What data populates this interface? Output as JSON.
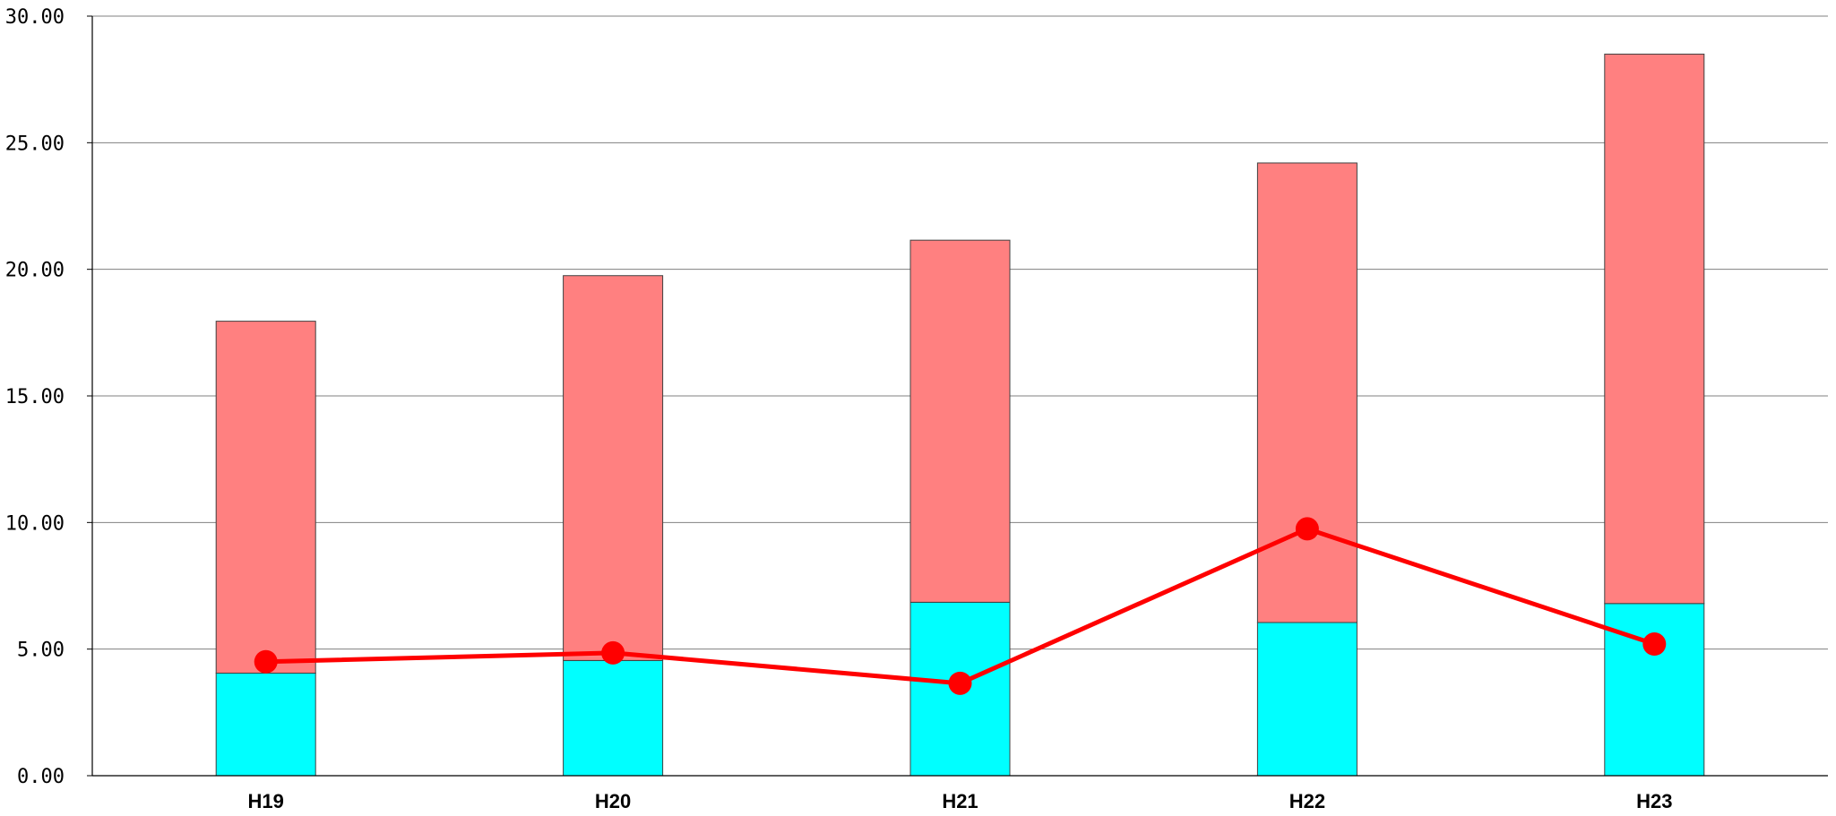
{
  "chart_data": {
    "type": "bar",
    "stacked": true,
    "categories": [
      "H19",
      "H20",
      "H21",
      "H22",
      "H23"
    ],
    "series": [
      {
        "kind": "bar",
        "color": "#00ffff",
        "values": [
          4.05,
          4.55,
          6.85,
          6.05,
          6.8
        ]
      },
      {
        "kind": "bar",
        "color": "#ff8080",
        "values": [
          13.9,
          15.2,
          14.3,
          18.15,
          21.7
        ]
      },
      {
        "kind": "line",
        "color": "#ff0000",
        "marker": "circle",
        "values": [
          4.5,
          4.85,
          3.65,
          9.75,
          5.2
        ]
      }
    ],
    "ylim": [
      0,
      30
    ],
    "yticks": [
      "0.00",
      "5.00",
      "10.00",
      "15.00",
      "20.00",
      "25.00",
      "30.00"
    ],
    "grid": true,
    "legend": "none",
    "title": "",
    "xlabel": "",
    "ylabel": ""
  }
}
